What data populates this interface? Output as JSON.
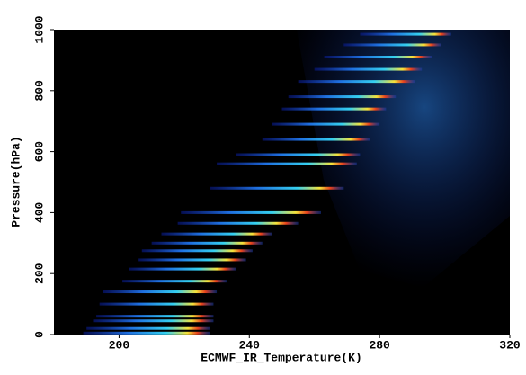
{
  "chart_data": {
    "type": "streaks",
    "xlabel": "ECMWF_IR_Temperature(K)",
    "ylabel": "Pressure(hPa)",
    "xlim": [
      180,
      320
    ],
    "xticks": [
      200,
      240,
      280,
      320
    ],
    "ylim": [
      0,
      1000
    ],
    "yticks": [
      0,
      200,
      400,
      600,
      800,
      1000
    ],
    "levels": [
      5,
      20,
      45,
      60,
      100,
      140,
      175,
      215,
      245,
      275,
      300,
      330,
      365,
      400,
      480,
      560,
      590,
      640,
      690,
      740,
      780,
      830,
      870,
      910,
      950,
      985
    ],
    "t_min": [
      189,
      190,
      192,
      193,
      194,
      195,
      201,
      203,
      206,
      207,
      210,
      213,
      218,
      219,
      228,
      230,
      236,
      244,
      247,
      250,
      252,
      255,
      260,
      263,
      269,
      274
    ],
    "t_max": [
      228,
      228,
      229,
      229,
      229,
      230,
      233,
      236,
      239,
      241,
      244,
      247,
      255,
      262,
      269,
      273,
      274,
      277,
      280,
      282,
      285,
      291,
      293,
      296,
      299,
      302
    ]
  }
}
